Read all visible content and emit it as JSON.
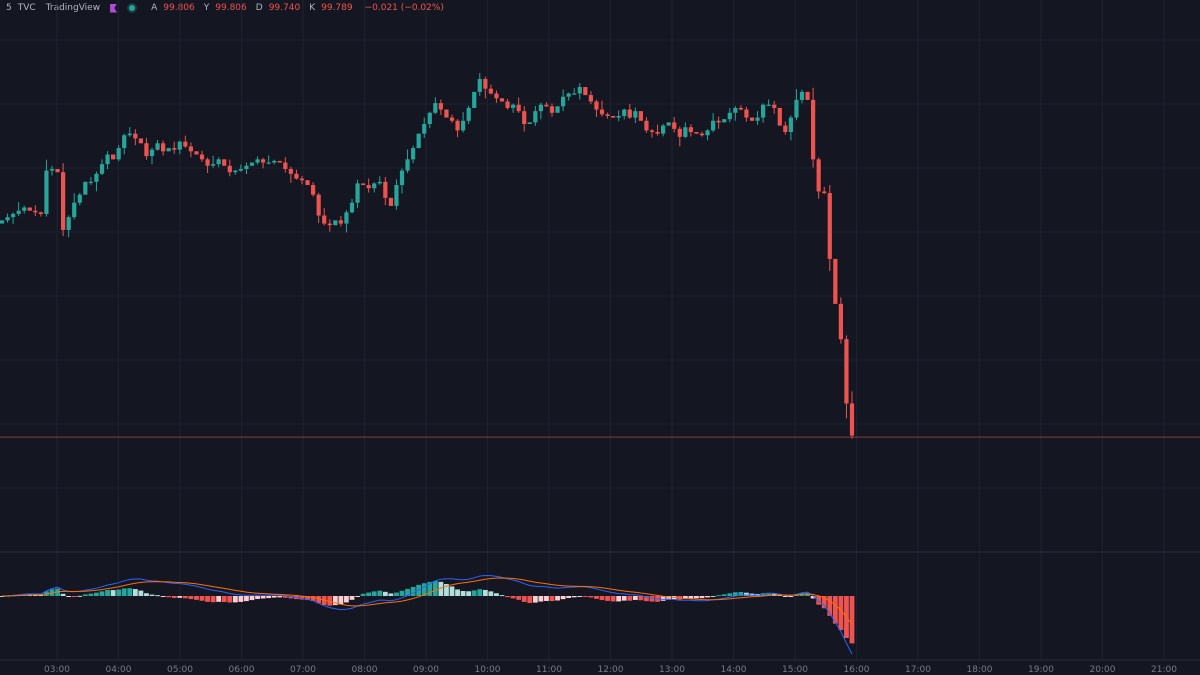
{
  "legend": {
    "interval": "5",
    "exchange": "TVC",
    "source": "TradingView",
    "open_key": "A",
    "open": "99.806",
    "high_key": "Y",
    "high": "99.806",
    "low_key": "D",
    "low": "99.740",
    "close_key": "K",
    "close": "99.789",
    "change": "−0.021 (−0.02%)"
  },
  "colors": {
    "background": "#141722",
    "up": "#26a69a",
    "down": "#ef5350",
    "macd_line": "#2962ff",
    "signal_line": "#ff6d00",
    "grid": "#1e2230"
  },
  "chart_data": [
    {
      "type": "candlestick",
      "x_axis_labels": [
        "03:00",
        "04:00",
        "05:00",
        "06:00",
        "07:00",
        "08:00",
        "09:00",
        "10:00",
        "11:00",
        "12:00",
        "13:00",
        "14:00",
        "15:00",
        "16:00",
        "17:00",
        "18:00",
        "19:00",
        "20:00",
        "21:00"
      ],
      "grid": true,
      "closes": [
        99.924,
        99.926,
        99.928,
        99.93,
        99.932,
        99.93,
        99.929,
        99.928,
        99.955,
        99.956,
        99.954,
        99.918,
        99.926,
        99.935,
        99.94,
        99.948,
        99.948,
        99.953,
        99.959,
        99.965,
        99.962,
        99.969,
        99.977,
        99.978,
        99.975,
        99.972,
        99.964,
        99.968,
        99.972,
        99.967,
        99.969,
        99.968,
        99.973,
        99.97,
        99.967,
        99.965,
        99.962,
        99.958,
        99.959,
        99.962,
        99.958,
        99.954,
        99.955,
        99.956,
        99.958,
        99.96,
        99.962,
        99.96,
        99.96,
        99.961,
        99.96,
        99.956,
        99.953,
        99.95,
        99.949,
        99.946,
        99.94,
        99.927,
        99.922,
        99.921,
        99.924,
        99.922,
        99.929,
        99.935,
        99.947,
        99.946,
        99.944,
        99.947,
        99.948,
        99.938,
        99.933,
        99.946,
        99.955,
        99.962,
        99.969,
        99.978,
        99.984,
        99.991,
        99.997,
        99.993,
        99.988,
        99.986,
        99.98,
        99.986,
        99.994,
        100.004,
        100.012,
        100.006,
        100.003,
        100.0,
        99.998,
        99.994,
        99.996,
        99.992,
        99.984,
        99.985,
        99.992,
        99.996,
        99.995,
        99.991,
        99.995,
        100.001,
        100.003,
        100.003,
        100.007,
        100.002,
        99.998,
        99.993,
        99.99,
        99.989,
        99.988,
        99.989,
        99.993,
        99.988,
        99.992,
        99.986,
        99.98,
        99.979,
        99.978,
        99.983,
        99.985,
        99.981,
        99.976,
        99.982,
        99.979,
        99.978,
        99.977,
        99.98,
        99.986,
        99.985,
        99.987,
        99.991,
        99.994,
        99.993,
        99.988,
        99.986,
        99.988,
        99.996,
        99.996,
        99.994,
        99.983,
        99.979,
        99.988,
        99.999,
        100.004,
        99.999,
        99.962,
        99.942,
        99.941,
        99.9,
        99.872,
        99.85,
        99.81,
        99.79
      ],
      "current_price_line": 99.789,
      "price_range_shown": [
        99.72,
        100.05
      ]
    },
    {
      "type": "macd",
      "series": [
        {
          "name": "MACD",
          "color": "#2962ff"
        },
        {
          "name": "Signal",
          "color": "#ff6d00"
        },
        {
          "name": "Histogram"
        }
      ]
    }
  ]
}
